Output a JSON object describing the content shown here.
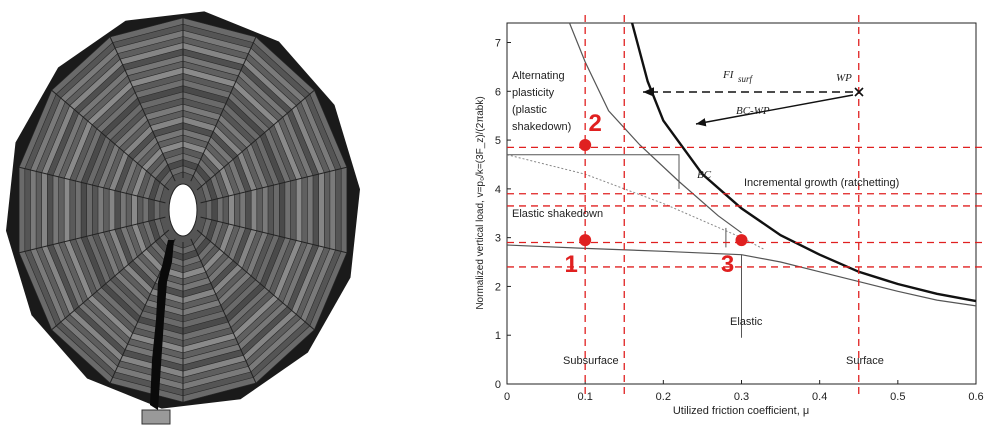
{
  "chart_data": {
    "type": "line",
    "xlabel": "Utilized friction coefficient, μ",
    "ylabel": "Normalized vertical load, v=p₀/k=(3F_z)/(2πabk)",
    "xlim": [
      0,
      0.6
    ],
    "ylim": [
      0,
      7.4
    ],
    "xticks": [
      0,
      0.1,
      0.2,
      0.3,
      0.4,
      0.5,
      0.6
    ],
    "yticks": [
      0,
      1,
      2,
      3,
      4,
      5,
      6,
      7
    ],
    "series": [
      {
        "color": "#111111",
        "width": 2.4,
        "x": [
          0.16,
          0.18,
          0.2,
          0.25,
          0.3,
          0.35,
          0.4,
          0.45,
          0.5,
          0.55,
          0.6
        ],
        "values": [
          7.4,
          6.2,
          5.4,
          4.3,
          3.6,
          3.05,
          2.65,
          2.3,
          2.05,
          1.85,
          1.7
        ]
      },
      {
        "color": "#555555",
        "width": 1.2,
        "x": [
          0.08,
          0.1,
          0.13,
          0.17,
          0.22,
          0.27,
          0.3
        ],
        "values": [
          7.4,
          6.6,
          5.6,
          4.9,
          4.15,
          3.45,
          3.1
        ]
      },
      {
        "color": "#555555",
        "width": 1.2,
        "x": [
          0,
          0.1,
          0.2,
          0.3,
          0.35,
          0.4,
          0.45,
          0.5,
          0.55,
          0.6
        ],
        "values": [
          2.85,
          2.78,
          2.72,
          2.65,
          2.5,
          2.3,
          2.1,
          1.9,
          1.72,
          1.6
        ]
      },
      {
        "color": "#888888",
        "width": 1,
        "dash": "2 2",
        "x": [
          0,
          0.1,
          0.2,
          0.3,
          0.33
        ],
        "values": [
          4.7,
          4.3,
          3.7,
          3.0,
          2.75
        ]
      },
      {
        "color": "#555555",
        "width": 1,
        "x": [
          0,
          0.22,
          0.22
        ],
        "values": [
          4.7,
          4.7,
          4.0
        ]
      },
      {
        "color": "#555555",
        "width": 1,
        "x": [
          0.3,
          0.3
        ],
        "values": [
          2.65,
          0.95
        ]
      },
      {
        "color": "#555555",
        "width": 1,
        "x": [
          0.28,
          0.28
        ],
        "values": [
          3.2,
          2.8
        ]
      }
    ],
    "ref_color": "#e02020",
    "hlines": [
      4.85,
      3.9,
      3.65,
      2.9,
      2.4
    ],
    "vlines": [
      0.1,
      0.15,
      0.45
    ],
    "points": {
      "labels": [
        "2",
        "1",
        "3"
      ],
      "x": [
        0.1,
        0.1,
        0.3
      ],
      "values": [
        4.9,
        2.95,
        2.95
      ]
    },
    "annotations": [
      "Alternating",
      "plasticity",
      "(plastic",
      "shakedown)",
      "Elastic shakedown",
      "Incremental growth (ratchetting)",
      "Elastic",
      "Subsurface",
      "Surface",
      "BC",
      "FI",
      "surf",
      "WP",
      "BC-WP"
    ]
  }
}
